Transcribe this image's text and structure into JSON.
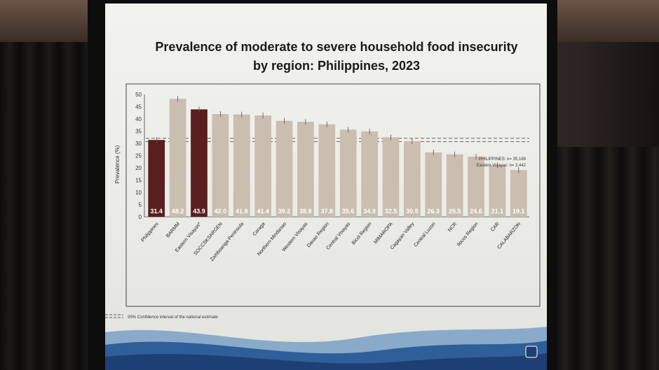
{
  "colors": {
    "bar_default": "#c9beb0",
    "bar_highlight": "#5a1e1e",
    "value_label": "#ffffff",
    "ci_line": "#555555"
  },
  "chart_data": {
    "type": "bar",
    "title_line1": "Prevalence of moderate to severe household food insecurity",
    "title_line2": "by region: Philippines, 2023",
    "ylabel": "Prevalence (%)",
    "ylim": [
      0,
      50
    ],
    "yticks": [
      0,
      5,
      10,
      15,
      20,
      25,
      30,
      35,
      40,
      45,
      50
    ],
    "categories": [
      "Philippines",
      "BARMM",
      "Eastern Visayas*",
      "SOCCSKSARGEN",
      "Zamboanga Peninsula",
      "Caraga",
      "Northern Mindanao",
      "Western Visayas",
      "Davao Region",
      "Central Visayas",
      "Bicol Region",
      "MIMAROPA",
      "Cagayan Valley",
      "Central Luzon",
      "NCR",
      "Ilocos Region",
      "CAR",
      "CALABARZON"
    ],
    "values": [
      31.4,
      48.2,
      43.9,
      42.0,
      41.8,
      41.4,
      39.2,
      38.8,
      37.8,
      35.6,
      34.9,
      32.5,
      30.9,
      26.3,
      25.5,
      24.6,
      21.1,
      19.1
    ],
    "value_labels": [
      "31.4",
      "48.2",
      "43.9",
      "42.0",
      "41.8",
      "41.4",
      "39.2",
      "38.8",
      "37.8",
      "35.6",
      "34.9",
      "32.5",
      "30.9",
      "26.3",
      "25.5",
      "24.6",
      "21.1",
      "19.1"
    ],
    "highlight": [
      "Philippines",
      "Eastern Visayas*"
    ],
    "ci_band": [
      30.7,
      32.1
    ],
    "sample_note_1": "PHILIPPINES: n= 35,189",
    "sample_note_2": "Eastern Visayas: n= 2,442",
    "legend_label": "95% Confidence interval of the national estimate"
  }
}
